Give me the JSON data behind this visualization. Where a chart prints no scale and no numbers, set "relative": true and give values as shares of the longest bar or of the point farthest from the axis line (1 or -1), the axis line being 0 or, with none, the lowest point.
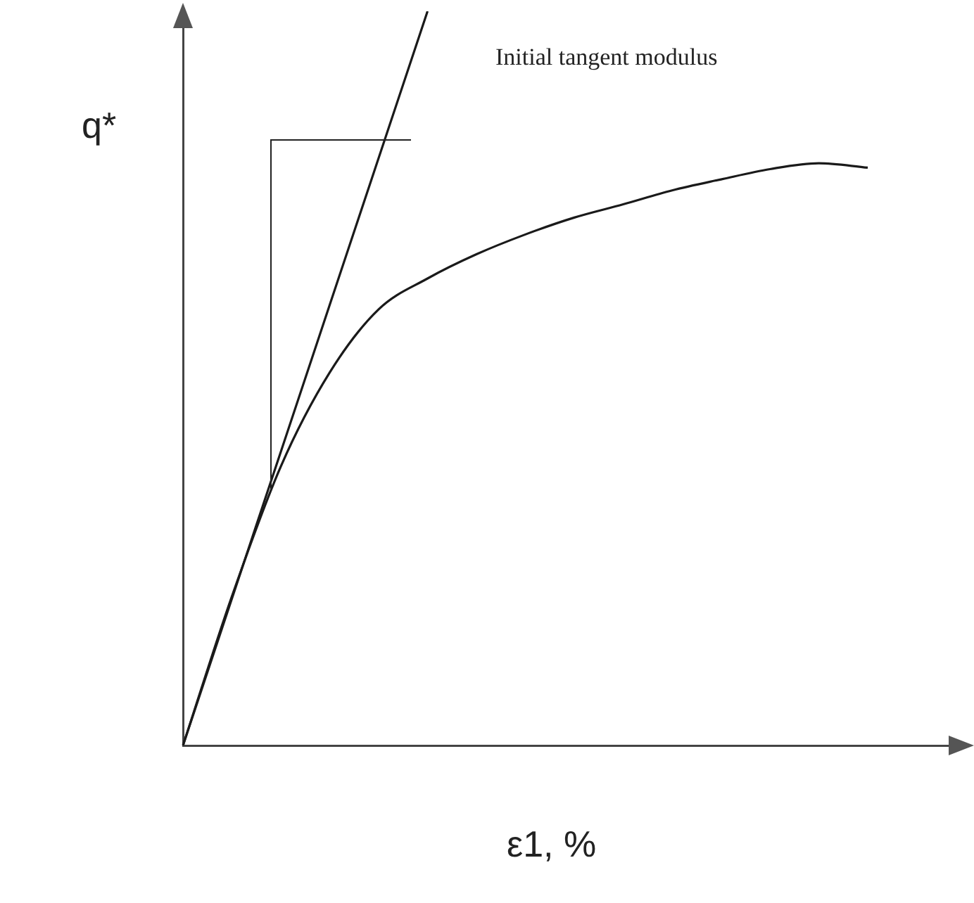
{
  "chart_data": {
    "type": "line",
    "xlabel": "ε1, %",
    "ylabel": "q*",
    "relative": true,
    "grid": false,
    "legend": false,
    "marker": "none",
    "line_style": "solid",
    "tick_labels": false,
    "annotations": [
      "Initial tangent modulus"
    ],
    "categories": [
      null,
      null,
      null,
      null,
      null,
      null,
      null,
      null,
      null,
      null,
      null,
      null,
      null,
      null,
      null,
      null,
      null
    ],
    "series": [
      {
        "color": "#1a1a1a",
        "values": [
          0,
          0.203,
          0.38,
          0.508,
          0.594,
          0.636,
          0.669,
          0.696,
          0.719,
          0.737,
          0.756,
          0.771,
          0.785,
          0.793,
          0.787,
          null,
          null
        ]
      },
      {
        "color": "#1a1a1a",
        "values": [
          0,
          0.2,
          0.4,
          0.6,
          0.8,
          1,
          null,
          null,
          null,
          null,
          null,
          null,
          null,
          null,
          null,
          null,
          null
        ]
      }
    ]
  }
}
